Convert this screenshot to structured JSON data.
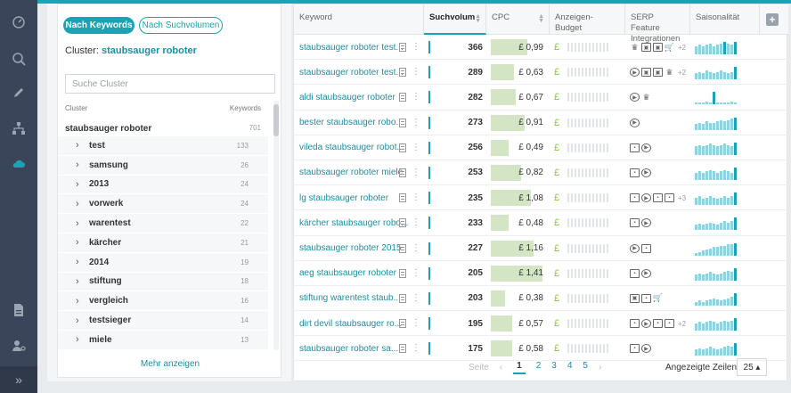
{
  "rail": {
    "icons": [
      "speedometer-icon",
      "search-globe-icon",
      "pencil-icon",
      "sitemap-icon",
      "cloud-icon",
      "document-icon",
      "user-settings-icon"
    ],
    "collapse_label": "»"
  },
  "left": {
    "toggle_keywords": "Nach Keywords",
    "toggle_volume": "Nach Suchvolumen",
    "cluster_prefix": "Cluster:",
    "cluster_name": "staubsauger roboter",
    "search_placeholder": "Suche Cluster",
    "col_cluster": "Cluster",
    "col_keywords": "Keywords",
    "root": {
      "label": "staubsauger roboter",
      "count": "701"
    },
    "items": [
      {
        "label": "test",
        "count": "133"
      },
      {
        "label": "samsung",
        "count": "26"
      },
      {
        "label": "2013",
        "count": "24"
      },
      {
        "label": "vorwerk",
        "count": "24"
      },
      {
        "label": "warentest",
        "count": "22"
      },
      {
        "label": "kärcher",
        "count": "21"
      },
      {
        "label": "2014",
        "count": "19"
      },
      {
        "label": "stiftung",
        "count": "18"
      },
      {
        "label": "vergleich",
        "count": "16"
      },
      {
        "label": "testsieger",
        "count": "14"
      },
      {
        "label": "miele",
        "count": "13"
      }
    ],
    "more_label": "Mehr anzeigen"
  },
  "table": {
    "headers": {
      "keyword": "Keyword",
      "volume": "Suchvolum",
      "cpc": "CPC",
      "budget": "Anzeigen-\nBudget",
      "serp": "SERP Feature\nIntegrationen",
      "season": "Saisonalität"
    },
    "rows": [
      {
        "keyword": "staubsauger roboter test...",
        "volume": "366",
        "cpc": "£ 0,99",
        "cpc_level": 0.99,
        "serp": [
          "crown",
          "image-stack",
          "image-stack",
          "cart"
        ],
        "serp_more": "+2",
        "season": [
          6,
          7,
          6,
          7,
          8,
          6,
          7,
          8,
          9,
          8,
          7,
          9
        ]
      },
      {
        "keyword": "staubsauger roboter test...",
        "volume": "289",
        "cpc": "£ 0,63",
        "cpc_level": 0.63,
        "serp": [
          "play",
          "image-stack",
          "image-stack",
          "crown"
        ],
        "serp_more": "+2",
        "season": [
          5,
          6,
          5,
          7,
          6,
          5,
          6,
          7,
          6,
          5,
          6,
          10
        ]
      },
      {
        "keyword": "aldi staubsauger roboter",
        "volume": "282",
        "cpc": "£ 0,67",
        "cpc_level": 0.67,
        "serp": [
          "play",
          "crown"
        ],
        "serp_more": "",
        "season": [
          1,
          1,
          1,
          2,
          1,
          10,
          1,
          1,
          1,
          1,
          2,
          1
        ]
      },
      {
        "keyword": "bester staubsauger robo...",
        "volume": "273",
        "cpc": "£ 0,91",
        "cpc_level": 0.91,
        "serp": [
          "play"
        ],
        "serp_more": "",
        "season": [
          5,
          6,
          5,
          7,
          6,
          6,
          7,
          8,
          7,
          8,
          9,
          10
        ]
      },
      {
        "keyword": "vileda staubsauger robot...",
        "volume": "256",
        "cpc": "£ 0,49",
        "cpc_level": 0.49,
        "serp": [
          "image",
          "play"
        ],
        "serp_more": "",
        "season": [
          7,
          8,
          7,
          8,
          9,
          8,
          7,
          8,
          9,
          8,
          7,
          10
        ]
      },
      {
        "keyword": "staubsauger roboter miele",
        "volume": "253",
        "cpc": "£ 0,82",
        "cpc_level": 0.82,
        "serp": [
          "image",
          "play"
        ],
        "serp_more": "",
        "season": [
          6,
          7,
          6,
          7,
          8,
          7,
          6,
          7,
          8,
          7,
          6,
          10
        ]
      },
      {
        "keyword": "lg staubsauger roboter",
        "volume": "235",
        "cpc": "£ 1,08",
        "cpc_level": 1.08,
        "serp": [
          "image",
          "play",
          "image",
          "image"
        ],
        "serp_more": "+3",
        "season": [
          6,
          7,
          5,
          6,
          7,
          6,
          5,
          6,
          7,
          6,
          7,
          10
        ]
      },
      {
        "keyword": "kärcher staubsauger robo...",
        "volume": "233",
        "cpc": "£ 0,48",
        "cpc_level": 0.48,
        "serp": [
          "image",
          "play"
        ],
        "serp_more": "",
        "season": [
          4,
          5,
          4,
          5,
          6,
          5,
          4,
          6,
          7,
          6,
          7,
          10
        ]
      },
      {
        "keyword": "staubsauger roboter 2015",
        "volume": "227",
        "cpc": "£ 1,16",
        "cpc_level": 1.16,
        "serp": [
          "play",
          "image"
        ],
        "serp_more": "",
        "season": [
          2,
          3,
          4,
          5,
          6,
          7,
          7,
          8,
          8,
          9,
          9,
          10
        ]
      },
      {
        "keyword": "aeg staubsauger roboter",
        "volume": "205",
        "cpc": "£ 1,41",
        "cpc_level": 1.41,
        "serp": [
          "image",
          "play"
        ],
        "serp_more": "",
        "season": [
          5,
          6,
          5,
          6,
          7,
          6,
          5,
          6,
          7,
          8,
          7,
          10
        ]
      },
      {
        "keyword": "stiftung warentest staub...",
        "volume": "203",
        "cpc": "£ 0,38",
        "cpc_level": 0.38,
        "serp": [
          "image-stack",
          "image",
          "cart"
        ],
        "serp_more": "",
        "season": [
          3,
          4,
          3,
          4,
          5,
          6,
          5,
          4,
          5,
          6,
          7,
          10
        ]
      },
      {
        "keyword": "dirt devil staubsauger ro...",
        "volume": "195",
        "cpc": "£ 0,57",
        "cpc_level": 0.57,
        "serp": [
          "image",
          "play",
          "image",
          "image"
        ],
        "serp_more": "+2",
        "season": [
          6,
          7,
          6,
          7,
          8,
          7,
          6,
          7,
          8,
          7,
          8,
          10
        ]
      },
      {
        "keyword": "staubsauger roboter sa...",
        "volume": "175",
        "cpc": "£ 0,58",
        "cpc_level": 0.58,
        "serp": [
          "image",
          "play"
        ],
        "serp_more": "",
        "season": [
          5,
          6,
          5,
          6,
          7,
          6,
          5,
          6,
          7,
          8,
          7,
          10
        ]
      }
    ]
  },
  "pager": {
    "label": "Seite",
    "pages": [
      "1",
      "2",
      "3",
      "4",
      "5"
    ],
    "current": "1",
    "prev": "‹",
    "next": "›"
  },
  "rows_per_page": {
    "label": "Angezeigte Zeilen",
    "value": "25 ▴"
  },
  "colors": {
    "accent": "#1aa3b5",
    "rail": "#3a4559",
    "cpc_bar": "#d4e5c5",
    "pound": "#8cc63f"
  }
}
